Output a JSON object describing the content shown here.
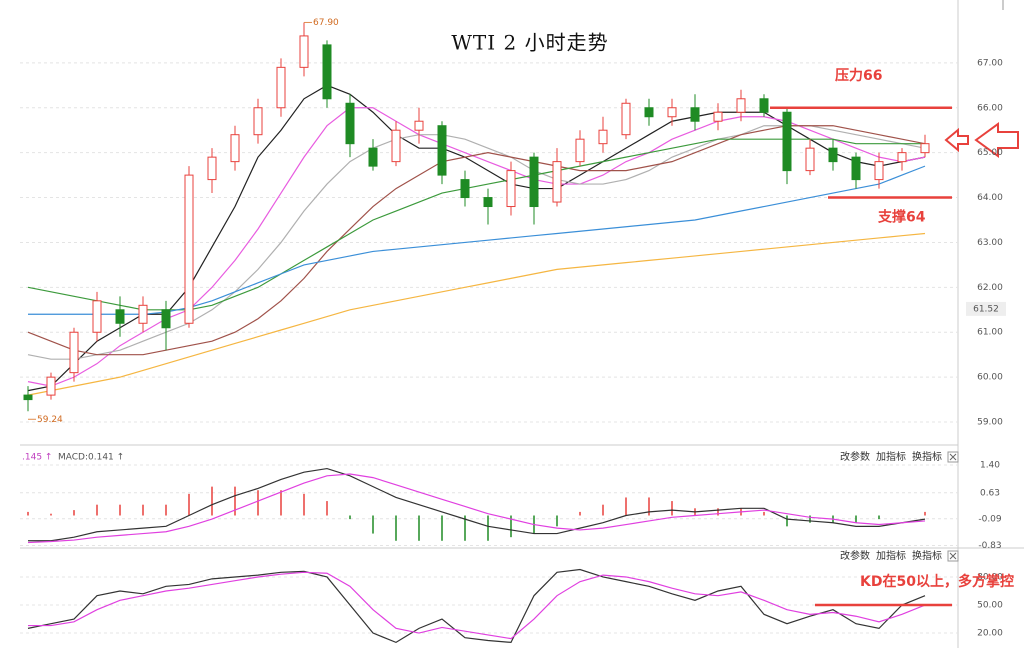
{
  "chart_data": [
    {
      "type": "candlestick",
      "title": "WTI 2 小时走势",
      "ylim": [
        58.6,
        68.4
      ],
      "yticks": [
        {
          "value": 67,
          "label": "67.00"
        },
        {
          "value": 66,
          "label": "66.00"
        },
        {
          "value": 65,
          "label": "65.00"
        },
        {
          "value": 64,
          "label": "64.00"
        },
        {
          "value": 63,
          "label": "63.00"
        },
        {
          "value": 62,
          "label": "62.00"
        },
        {
          "value": 61,
          "label": "61.00"
        },
        {
          "value": 60,
          "label": "60.00"
        },
        {
          "value": 59,
          "label": "59.00"
        }
      ],
      "grid": true,
      "up_color": "#e8413c",
      "down_color": "#1f8b24",
      "open": [
        59.6,
        59.6,
        60.1,
        61.0,
        61.5,
        61.2,
        61.5,
        61.2,
        64.4,
        64.8,
        65.4,
        66.0,
        66.9,
        67.4,
        66.1,
        65.1,
        64.8,
        65.5,
        65.6,
        64.4,
        64.0,
        63.8,
        64.9,
        63.9,
        64.8,
        65.2,
        65.4,
        66.0,
        65.8,
        66.0,
        65.7,
        65.9,
        66.2,
        65.9,
        64.6,
        65.1,
        64.9,
        64.4,
        64.8,
        65.0
      ],
      "high": [
        59.8,
        60.1,
        61.1,
        61.9,
        61.8,
        61.8,
        61.7,
        64.7,
        65.1,
        65.6,
        66.2,
        67.1,
        67.9,
        67.5,
        66.3,
        65.3,
        65.7,
        66.0,
        65.7,
        64.6,
        64.2,
        64.8,
        65.0,
        65.1,
        65.5,
        65.8,
        66.2,
        66.2,
        66.2,
        66.3,
        66.1,
        66.4,
        66.3,
        66.0,
        65.3,
        65.3,
        65.0,
        65.0,
        65.1,
        65.4
      ],
      "low": [
        59.24,
        59.5,
        59.9,
        60.8,
        60.9,
        61.0,
        60.6,
        61.1,
        64.1,
        64.6,
        65.2,
        65.8,
        66.7,
        66.0,
        64.9,
        64.6,
        64.7,
        65.2,
        64.3,
        63.8,
        63.4,
        63.6,
        63.4,
        63.8,
        64.7,
        65.0,
        65.3,
        65.6,
        65.6,
        65.5,
        65.5,
        65.7,
        65.8,
        64.3,
        64.5,
        64.6,
        64.2,
        64.2,
        64.6,
        64.9
      ],
      "close": [
        59.5,
        60.0,
        61.0,
        61.7,
        61.2,
        61.6,
        61.1,
        64.5,
        64.9,
        65.4,
        66.0,
        66.9,
        67.6,
        66.2,
        65.2,
        64.7,
        65.5,
        65.7,
        64.5,
        64.0,
        63.8,
        64.6,
        63.8,
        64.8,
        65.3,
        65.5,
        66.1,
        65.8,
        66.0,
        65.7,
        65.9,
        66.2,
        65.9,
        64.6,
        65.1,
        64.8,
        64.4,
        64.8,
        65.0,
        65.2
      ],
      "lines": [
        {
          "color": "#222222",
          "values": [
            59.7,
            59.8,
            60.3,
            60.8,
            61.1,
            61.4,
            61.4,
            62.0,
            62.9,
            63.8,
            64.9,
            65.5,
            66.2,
            66.5,
            66.3,
            65.9,
            65.4,
            65.1,
            65.1,
            64.9,
            64.6,
            64.3,
            64.2,
            64.2,
            64.5,
            64.8,
            65.1,
            65.4,
            65.7,
            65.8,
            65.9,
            65.9,
            65.9,
            65.6,
            65.3,
            65.0,
            64.8,
            64.7,
            64.8,
            64.9
          ]
        },
        {
          "color": "#e85ce0",
          "values": [
            59.9,
            59.8,
            60.0,
            60.3,
            60.7,
            61.0,
            61.3,
            61.5,
            62.0,
            62.6,
            63.3,
            64.1,
            64.9,
            65.6,
            66.0,
            66.0,
            65.7,
            65.4,
            65.2,
            65.0,
            64.8,
            64.6,
            64.4,
            64.3,
            64.3,
            64.5,
            64.8,
            65.0,
            65.3,
            65.5,
            65.7,
            65.8,
            65.8,
            65.7,
            65.5,
            65.3,
            65.1,
            64.9,
            64.8,
            64.9
          ]
        },
        {
          "color": "#b0b0b0",
          "values": [
            60.5,
            60.4,
            60.4,
            60.5,
            60.6,
            60.8,
            61.0,
            61.2,
            61.5,
            61.9,
            62.4,
            63.0,
            63.7,
            64.3,
            64.8,
            65.1,
            65.3,
            65.4,
            65.4,
            65.3,
            65.1,
            64.9,
            64.6,
            64.4,
            64.3,
            64.3,
            64.4,
            64.6,
            64.9,
            65.1,
            65.3,
            65.4,
            65.6,
            65.6,
            65.6,
            65.5,
            65.4,
            65.3,
            65.2,
            65.1
          ]
        },
        {
          "color": "#a0524a",
          "values": [
            61.0,
            60.8,
            60.6,
            60.5,
            60.5,
            60.5,
            60.6,
            60.7,
            60.8,
            61.0,
            61.3,
            61.7,
            62.2,
            62.8,
            63.3,
            63.8,
            64.2,
            64.5,
            64.8,
            64.9,
            65.0,
            64.9,
            64.8,
            64.7,
            64.6,
            64.6,
            64.6,
            64.7,
            64.8,
            65.0,
            65.2,
            65.4,
            65.5,
            65.6,
            65.6,
            65.6,
            65.5,
            65.4,
            65.3,
            65.2
          ]
        },
        {
          "color": "#3c9a3c",
          "values": [
            62.0,
            61.9,
            61.8,
            61.7,
            61.6,
            61.5,
            61.5,
            61.5,
            61.6,
            61.8,
            62.0,
            62.3,
            62.6,
            62.9,
            63.2,
            63.5,
            63.7,
            63.9,
            64.1,
            64.2,
            64.3,
            64.4,
            64.5,
            64.6,
            64.7,
            64.8,
            64.9,
            65.0,
            65.1,
            65.2,
            65.3,
            65.3,
            65.3,
            65.3,
            65.3,
            65.3,
            65.2,
            65.2,
            65.2,
            65.2
          ]
        },
        {
          "color": "#3b8fd8",
          "values": [
            61.4,
            61.4,
            61.4,
            61.4,
            61.4,
            61.4,
            61.45,
            61.55,
            61.7,
            61.9,
            62.1,
            62.3,
            62.5,
            62.6,
            62.7,
            62.8,
            62.85,
            62.9,
            62.95,
            63.0,
            63.05,
            63.1,
            63.15,
            63.2,
            63.25,
            63.3,
            63.35,
            63.4,
            63.45,
            63.5,
            63.6,
            63.7,
            63.8,
            63.9,
            64.0,
            64.1,
            64.2,
            64.3,
            64.5,
            64.7
          ]
        },
        {
          "color": "#f5b642",
          "values": [
            59.6,
            59.7,
            59.8,
            59.9,
            60.0,
            60.15,
            60.3,
            60.45,
            60.6,
            60.75,
            60.9,
            61.05,
            61.2,
            61.35,
            61.5,
            61.6,
            61.7,
            61.8,
            61.9,
            62.0,
            62.1,
            62.2,
            62.3,
            62.4,
            62.45,
            62.5,
            62.55,
            62.6,
            62.65,
            62.7,
            62.75,
            62.8,
            62.85,
            62.9,
            62.95,
            63.0,
            63.05,
            63.1,
            63.15,
            63.2
          ]
        }
      ],
      "annotations": [
        {
          "text": "67.90",
          "value": 67.9
        },
        {
          "text": "59.24",
          "value": 59.24
        }
      ],
      "price_tag": {
        "value": 61.52,
        "label": "61.52"
      },
      "levels": [
        {
          "text": "压力66",
          "value": 66,
          "color": "#e8413c"
        },
        {
          "text": "支撑64",
          "value": 64,
          "color": "#e8413c"
        }
      ]
    },
    {
      "type": "macd",
      "header": [
        ".145 ↑",
        "MACD:0.141 ↑"
      ],
      "buttons": [
        "改参数",
        "加指标",
        "换指标"
      ],
      "ylim": [
        -0.9,
        1.87
      ],
      "yticks": [
        {
          "value": 1.4,
          "label": "1.40"
        },
        0.63,
        -0.09,
        -0.83
      ],
      "up_color": "#e8413c",
      "down_color": "#1f8b24",
      "bars": [
        0.1,
        0.05,
        0.15,
        0.3,
        0.3,
        0.3,
        0.3,
        0.6,
        0.8,
        0.8,
        0.7,
        0.7,
        0.6,
        0.4,
        -0.1,
        -0.5,
        -0.7,
        -0.7,
        -0.7,
        -0.7,
        -0.7,
        -0.6,
        -0.5,
        -0.3,
        0.1,
        0.3,
        0.5,
        0.5,
        0.4,
        0.2,
        0.2,
        0.2,
        0.1,
        -0.3,
        -0.2,
        -0.2,
        -0.2,
        -0.1,
        0.0,
        0.1
      ],
      "lines": [
        {
          "color": "#333333",
          "values": [
            -0.7,
            -0.7,
            -0.6,
            -0.45,
            -0.4,
            -0.35,
            -0.3,
            0.0,
            0.3,
            0.55,
            0.75,
            1.0,
            1.2,
            1.3,
            1.1,
            0.8,
            0.5,
            0.3,
            0.1,
            -0.1,
            -0.3,
            -0.4,
            -0.5,
            -0.5,
            -0.35,
            -0.2,
            0.0,
            0.1,
            0.15,
            0.1,
            0.15,
            0.2,
            0.2,
            -0.1,
            -0.15,
            -0.2,
            -0.3,
            -0.3,
            -0.2,
            -0.1
          ]
        },
        {
          "color": "#e040e0",
          "values": [
            -0.75,
            -0.72,
            -0.68,
            -0.6,
            -0.55,
            -0.5,
            -0.45,
            -0.3,
            -0.1,
            0.15,
            0.4,
            0.65,
            0.9,
            1.1,
            1.15,
            1.05,
            0.85,
            0.65,
            0.45,
            0.25,
            0.05,
            -0.1,
            -0.25,
            -0.35,
            -0.4,
            -0.35,
            -0.25,
            -0.15,
            -0.05,
            0.0,
            0.05,
            0.1,
            0.15,
            0.05,
            -0.05,
            -0.1,
            -0.2,
            -0.25,
            -0.2,
            -0.15
          ]
        }
      ]
    },
    {
      "type": "line",
      "buttons": [
        "改参数",
        "加指标",
        "换指标"
      ],
      "ylim": [
        4,
        111
      ],
      "yticks": [
        {
          "value": 80,
          "label": "80.00"
        },
        {
          "value": 50,
          "label": "50.00"
        },
        {
          "value": 20,
          "label": "20.00"
        }
      ],
      "lines": [
        {
          "color": "#333333",
          "values": [
            25,
            30,
            35,
            60,
            65,
            62,
            70,
            72,
            78,
            80,
            82,
            85,
            86,
            80,
            50,
            20,
            10,
            25,
            35,
            15,
            12,
            10,
            60,
            85,
            88,
            80,
            75,
            70,
            62,
            55,
            65,
            70,
            40,
            30,
            38,
            45,
            30,
            25,
            50,
            60
          ]
        },
        {
          "color": "#e040e0",
          "values": [
            28,
            28,
            32,
            45,
            55,
            60,
            65,
            68,
            72,
            76,
            80,
            83,
            85,
            84,
            70,
            45,
            25,
            20,
            26,
            22,
            18,
            14,
            35,
            60,
            75,
            82,
            80,
            75,
            68,
            62,
            60,
            64,
            55,
            45,
            40,
            42,
            38,
            32,
            40,
            50
          ]
        }
      ],
      "levels": [
        {
          "text": "KD在50以上，多方掌控",
          "value": 50,
          "color": "#e8413c"
        }
      ]
    }
  ]
}
